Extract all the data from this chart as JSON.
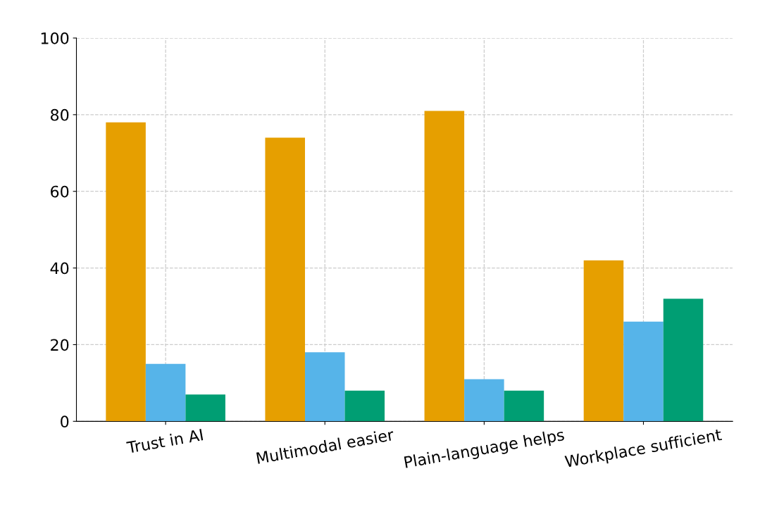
{
  "chart_data": {
    "type": "bar",
    "categories": [
      "Trust in AI",
      "Multimodal easier",
      "Plain-language helps",
      "Workplace sufficient"
    ],
    "series": [
      {
        "color": "#e69f00",
        "values": [
          78,
          74,
          81,
          42
        ]
      },
      {
        "color": "#56b4e9",
        "values": [
          15,
          18,
          11,
          26
        ]
      },
      {
        "color": "#009e73",
        "values": [
          7,
          8,
          8,
          32
        ]
      }
    ],
    "ylim": [
      0,
      100
    ],
    "yticks": [
      0,
      20,
      40,
      60,
      80,
      100
    ],
    "grid": true
  }
}
